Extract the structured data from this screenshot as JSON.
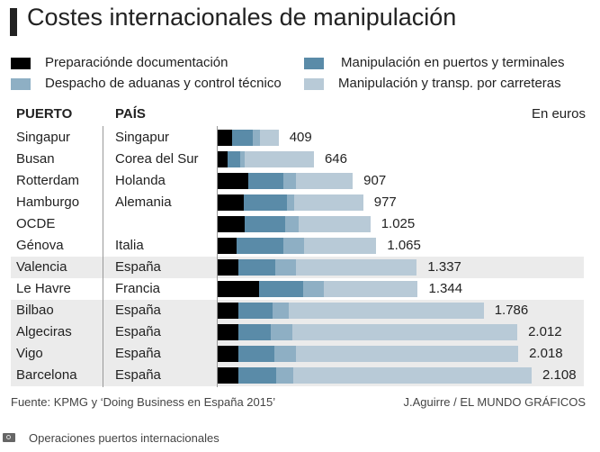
{
  "title": "Costes internacionales de manipulación",
  "chart_data": {
    "type": "bar",
    "orientation": "horizontal",
    "stacked": true,
    "title": "Costes internacionales de manipulación",
    "unit_label": "En euros",
    "column_headers": {
      "port": "PUERTO",
      "country": "PAÍS"
    },
    "categories": [
      "Singapur",
      "Busan",
      "Rotterdam",
      "Hamburgo",
      "OCDE",
      "Génova",
      "Valencia",
      "Le Havre",
      "Bilbao",
      "Algeciras",
      "Vigo",
      "Barcelona"
    ],
    "countries": [
      "Singapur",
      "Corea del Sur",
      "Holanda",
      "Alemania",
      "",
      "Italia",
      "España",
      "Francia",
      "España",
      "España",
      "España",
      "España"
    ],
    "highlighted": [
      false,
      false,
      false,
      false,
      false,
      false,
      true,
      false,
      true,
      true,
      true,
      true
    ],
    "totals": [
      409,
      646,
      907,
      977,
      1025,
      1065,
      1337,
      1344,
      1786,
      2012,
      2018,
      2108
    ],
    "total_labels": [
      "409",
      "646",
      "907",
      "977",
      "1.025",
      "1.065",
      "1.337",
      "1.344",
      "1.786",
      "2.012",
      "2.018",
      "2.108"
    ],
    "series": [
      {
        "name": "Preparaciónde documentación",
        "color": "#000000",
        "values": [
          97,
          66,
          205,
          175,
          181,
          127,
          139,
          278,
          139,
          139,
          139,
          139
        ]
      },
      {
        "name": "Manipulación en puertos y terminales",
        "color": "#5a8ba8",
        "values": [
          139,
          85,
          236,
          290,
          272,
          314,
          248,
          296,
          229,
          217,
          242,
          254
        ]
      },
      {
        "name": "Despacho de aduanas y control técnico",
        "color": "#8eafc4",
        "values": [
          48,
          30,
          85,
          48,
          91,
          139,
          139,
          139,
          109,
          145,
          145,
          115
        ]
      },
      {
        "name": "Manipulación y transp. por carreteras",
        "color": "#b8cad7",
        "values": [
          125,
          465,
          381,
          464,
          481,
          485,
          811,
          631,
          1309,
          1511,
          1492,
          1600
        ]
      }
    ],
    "xlim": [
      0,
      2108
    ],
    "grid": false,
    "legend_position": "top"
  },
  "footer": {
    "source": "Fuente: KPMG y ‘Doing Business en España 2015’",
    "credit": "J.Aguirre / EL MUNDO GRÁFICOS"
  },
  "caption": {
    "icon": "camera-icon",
    "text": "Operaciones puertos internacionales"
  }
}
